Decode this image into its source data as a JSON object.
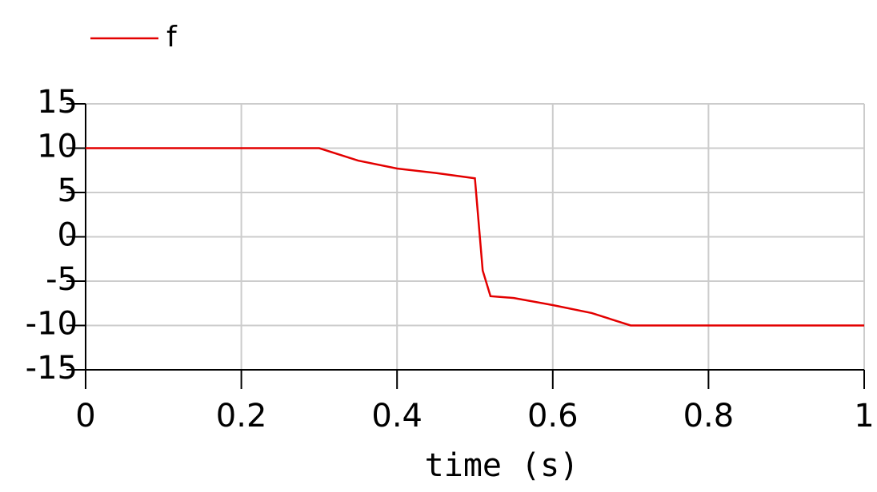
{
  "chart_data": {
    "type": "line",
    "xlabel": "time (s)",
    "x": [
      0,
      0.3,
      0.35,
      0.4,
      0.45,
      0.5,
      0.51,
      0.52,
      0.55,
      0.6,
      0.65,
      0.7,
      1
    ],
    "series": [
      {
        "name": "f",
        "color": "#e30000",
        "values": [
          10,
          10,
          8.6,
          7.7,
          7.2,
          6.6,
          -3.8,
          -6.7,
          -6.9,
          -7.7,
          -8.6,
          -10,
          -10
        ]
      }
    ],
    "xlim": [
      0,
      1
    ],
    "xticks": [
      0,
      0.2,
      0.4,
      0.6,
      0.8,
      1
    ],
    "ylim": [
      -15,
      15
    ],
    "yticks": [
      15,
      10,
      5,
      0,
      -5,
      -10,
      -15
    ],
    "grid": true,
    "legend": "top-left"
  }
}
